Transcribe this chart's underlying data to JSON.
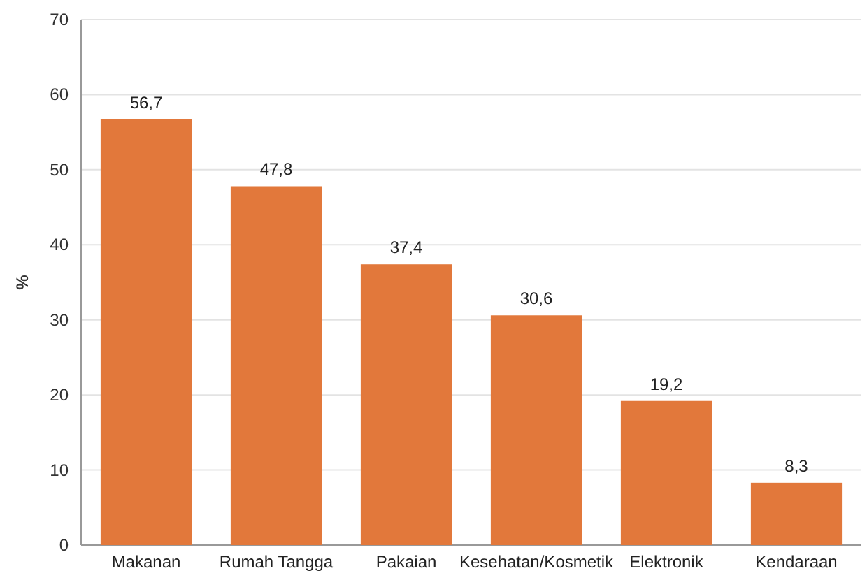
{
  "chart_data": {
    "type": "bar",
    "ylabel": "%",
    "categories": [
      "Makanan",
      "Rumah Tangga",
      "Pakaian",
      "Kesehatan/Kosmetik",
      "Elektronik",
      "Kendaraan"
    ],
    "values": [
      56.7,
      47.8,
      37.4,
      30.6,
      19.2,
      8.3
    ],
    "value_labels": [
      "56,7",
      "47,8",
      "37,4",
      "30,6",
      "19,2",
      "8,3"
    ],
    "color": "#e2783b",
    "ylim": [
      0,
      70
    ],
    "yticks": [
      0,
      10,
      20,
      30,
      40,
      50,
      60,
      70
    ],
    "grid": "y"
  }
}
